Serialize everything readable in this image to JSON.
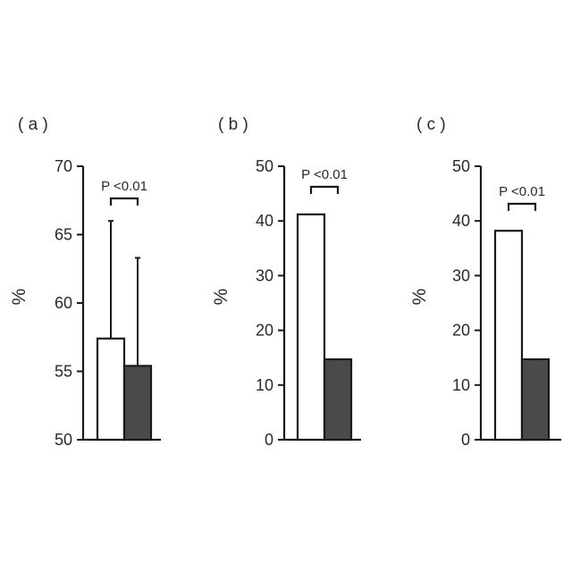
{
  "chart_data": [
    {
      "type": "bar",
      "panel_label": "( a )",
      "ylabel": "%",
      "ylim": [
        50,
        70
      ],
      "yticks": [
        50,
        55,
        60,
        65,
        70
      ],
      "significance": "P <0.01",
      "series": [
        {
          "values": [
            57.4
          ],
          "error_upper": [
            66.0
          ],
          "color": "#ffffff"
        },
        {
          "values": [
            55.4
          ],
          "error_upper": [
            63.3
          ],
          "color": "#4a4a4a"
        }
      ]
    },
    {
      "type": "bar",
      "panel_label": "( b )",
      "ylabel": "%",
      "ylim": [
        0,
        50
      ],
      "yticks": [
        0,
        10,
        20,
        30,
        40,
        50
      ],
      "significance": "P <0.01",
      "series": [
        {
          "values": [
            41.2
          ],
          "color": "#ffffff"
        },
        {
          "values": [
            14.7
          ],
          "color": "#4a4a4a"
        }
      ]
    },
    {
      "type": "bar",
      "panel_label": "( c )",
      "ylabel": "%",
      "ylim": [
        0,
        50
      ],
      "yticks": [
        0,
        10,
        20,
        30,
        40,
        50
      ],
      "significance": "P <0.01",
      "series": [
        {
          "values": [
            38.2
          ],
          "color": "#ffffff"
        },
        {
          "values": [
            14.7
          ],
          "color": "#4a4a4a"
        }
      ]
    }
  ]
}
